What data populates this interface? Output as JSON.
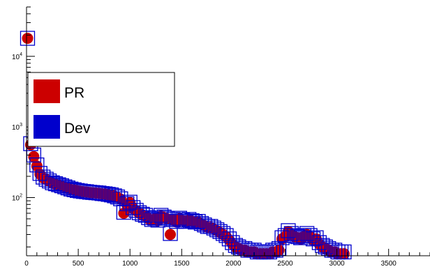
{
  "chart_data": {
    "type": "scatter",
    "title": "",
    "xlabel": "",
    "ylabel": "",
    "xlim": [
      0,
      3900
    ],
    "ylim": [
      15,
      50000
    ],
    "y_scale": "log",
    "grid": false,
    "legend_placement": "upper-left",
    "x_ticks": [
      0,
      500,
      1000,
      1500,
      2000,
      2500,
      3000,
      3500
    ],
    "x_tick_labels": [
      "0",
      "500",
      "1000",
      "1500",
      "2000",
      "2500",
      "3000",
      "3500"
    ],
    "y_ticks": [
      100,
      1000,
      10000
    ],
    "y_tick_labels": [
      {
        "base": "10",
        "exp": "2"
      },
      {
        "base": "10",
        "exp": "3"
      },
      {
        "base": "10",
        "exp": "4"
      }
    ],
    "series": [
      {
        "name": "PR",
        "color": "#cc0000",
        "marker": "filled-circle",
        "x": [
          10,
          40,
          70,
          100,
          130,
          160,
          190,
          220,
          250,
          280,
          310,
          340,
          370,
          400,
          430,
          460,
          490,
          520,
          550,
          580,
          610,
          640,
          670,
          700,
          730,
          760,
          790,
          820,
          850,
          880,
          910,
          940,
          970,
          1000,
          1030,
          1060,
          1090,
          1120,
          1150,
          1180,
          1210,
          1240,
          1270,
          1300,
          1330,
          1360,
          1390,
          1420,
          1450,
          1480,
          1510,
          1540,
          1570,
          1600,
          1630,
          1660,
          1690,
          1720,
          1750,
          1780,
          1810,
          1840,
          1870,
          1900,
          1930,
          1960,
          1990,
          2020,
          2050,
          2080,
          2110,
          2140,
          2170,
          2200,
          2230,
          2260,
          2290,
          2320,
          2350,
          2380,
          2410,
          2440,
          2470,
          2500,
          2530,
          2560,
          2590,
          2620,
          2650,
          2680,
          2710,
          2740,
          2770,
          2800,
          2830,
          2860,
          2890,
          2920,
          2950,
          2980,
          3010,
          3040,
          3070
        ],
        "y": [
          18000,
          560,
          380,
          280,
          215,
          190,
          180,
          170,
          160,
          155,
          150,
          145,
          140,
          135,
          130,
          128,
          125,
          123,
          121,
          120,
          118,
          117,
          116,
          115,
          113,
          112,
          110,
          108,
          105,
          100,
          95,
          60,
          80,
          85,
          70,
          65,
          60,
          57,
          55,
          50,
          48,
          50,
          47,
          55,
          52,
          50,
          30,
          48,
          45,
          50,
          47,
          45,
          48,
          46,
          44,
          45,
          42,
          40,
          38,
          38,
          36,
          34,
          32,
          30,
          28,
          25,
          22,
          20,
          19,
          18,
          18,
          17,
          17,
          17,
          16,
          16,
          16,
          16,
          16,
          17,
          17,
          18,
          26,
          28,
          33,
          30,
          28,
          27,
          26,
          28,
          30,
          28,
          25,
          26,
          22,
          20,
          19,
          18,
          17,
          17,
          16,
          16,
          16
        ]
      },
      {
        "name": "Dev",
        "color": "#0000cc",
        "marker": "open-square",
        "x": [
          10,
          40,
          70,
          100,
          130,
          160,
          190,
          220,
          250,
          280,
          310,
          340,
          370,
          400,
          430,
          460,
          490,
          520,
          550,
          580,
          610,
          640,
          670,
          700,
          730,
          760,
          790,
          820,
          850,
          880,
          910,
          940,
          970,
          1000,
          1030,
          1060,
          1090,
          1120,
          1150,
          1180,
          1210,
          1240,
          1270,
          1300,
          1330,
          1360,
          1390,
          1420,
          1450,
          1480,
          1510,
          1540,
          1570,
          1600,
          1630,
          1660,
          1690,
          1720,
          1750,
          1780,
          1810,
          1840,
          1870,
          1900,
          1930,
          1960,
          1990,
          2020,
          2050,
          2080,
          2110,
          2140,
          2170,
          2200,
          2230,
          2260,
          2290,
          2320,
          2350,
          2380,
          2410,
          2440,
          2470,
          2500,
          2530,
          2560,
          2590,
          2620,
          2650,
          2680,
          2710,
          2740,
          2770,
          2800,
          2830,
          2860,
          2890,
          2920,
          2950,
          2980,
          3010,
          3040,
          3070
        ],
        "y": [
          18000,
          580,
          400,
          290,
          220,
          195,
          182,
          172,
          162,
          157,
          152,
          147,
          142,
          137,
          132,
          129,
          126,
          124,
          122,
          121,
          119,
          118,
          117,
          116,
          114,
          113,
          111,
          109,
          106,
          102,
          96,
          62,
          82,
          86,
          72,
          66,
          61,
          58,
          56,
          52,
          49,
          51,
          48,
          56,
          53,
          51,
          31,
          49,
          46,
          51,
          48,
          46,
          49,
          47,
          45,
          46,
          43,
          41,
          39,
          39,
          37,
          35,
          33,
          31,
          29,
          26,
          23,
          21,
          20,
          19,
          19,
          18,
          18,
          18,
          17,
          17,
          17,
          17,
          17,
          18,
          18,
          19,
          27,
          29,
          34,
          31,
          29,
          28,
          27,
          29,
          31,
          29,
          26,
          27,
          23,
          21,
          20,
          19,
          18,
          18,
          17,
          17,
          17
        ]
      }
    ],
    "legend": [
      {
        "label": "PR",
        "color": "#cc0000"
      },
      {
        "label": "Dev",
        "color": "#0000cc"
      }
    ]
  }
}
